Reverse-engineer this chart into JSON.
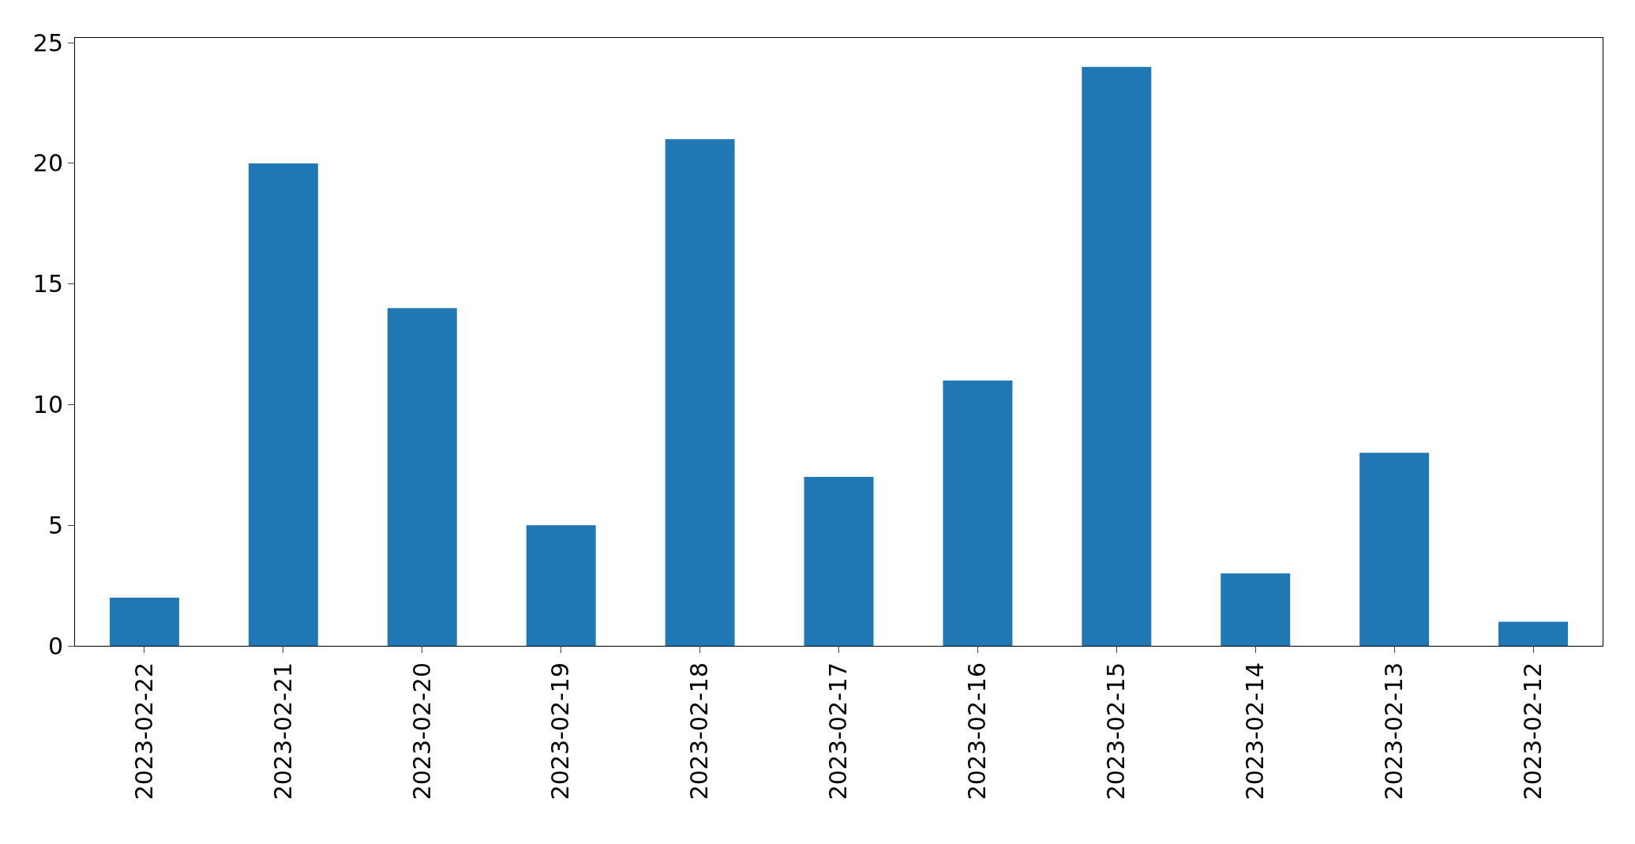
{
  "chart_data": {
    "type": "bar",
    "categories": [
      "2023-02-22",
      "2023-02-21",
      "2023-02-20",
      "2023-02-19",
      "2023-02-18",
      "2023-02-17",
      "2023-02-16",
      "2023-02-15",
      "2023-02-14",
      "2023-02-13",
      "2023-02-12"
    ],
    "values": [
      2,
      20,
      14,
      5,
      21,
      7,
      11,
      24,
      3,
      8,
      1
    ],
    "color": "#1f77b4",
    "ylim": [
      0,
      25.2
    ],
    "yticks": [
      0,
      5,
      10,
      15,
      20,
      25
    ]
  }
}
